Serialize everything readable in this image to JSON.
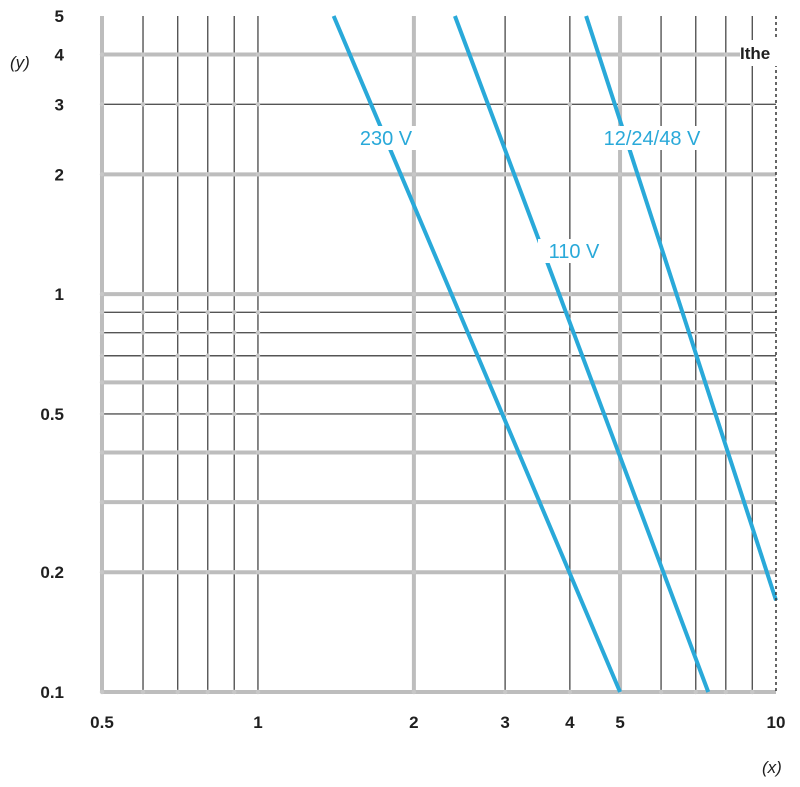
{
  "chart_data": {
    "type": "line",
    "xscale": "log",
    "yscale": "log",
    "xlim": [
      0.5,
      10
    ],
    "ylim": [
      0.1,
      5
    ],
    "xlabel": "(x)",
    "ylabel": "(y)",
    "grid": true,
    "x_ticks": [
      0.5,
      1,
      2,
      3,
      4,
      5,
      10
    ],
    "x_tick_labels": [
      "0.5",
      "1",
      "2",
      "3",
      "4",
      "5",
      "10"
    ],
    "y_ticks": [
      0.1,
      0.2,
      0.5,
      1,
      2,
      3,
      4,
      5
    ],
    "y_tick_labels": [
      "0.1",
      "0.2",
      "0.5",
      "1",
      "2",
      "3",
      "4",
      "5"
    ],
    "x_major_grid": [
      0.5,
      2,
      5
    ],
    "x_minor_grid": [
      0.6,
      0.7,
      0.8,
      0.9,
      1,
      3,
      4,
      6,
      7,
      8,
      9
    ],
    "y_major_grid": [
      0.1,
      0.2,
      0.3,
      0.4,
      0.6,
      1,
      2,
      4
    ],
    "y_minor_grid": [
      0.5,
      0.7,
      0.8,
      0.9,
      3
    ],
    "line_color": "#29a9d9",
    "series": [
      {
        "name": "230 V",
        "points": [
          [
            1.4,
            5
          ],
          [
            5,
            0.1
          ]
        ]
      },
      {
        "name": "110 V",
        "points": [
          [
            2.4,
            5
          ],
          [
            7.4,
            0.1
          ]
        ]
      },
      {
        "name": "12/24/48 V",
        "points": [
          [
            4.3,
            5
          ],
          [
            10,
            0.17
          ]
        ]
      }
    ],
    "annotations": [
      {
        "text": "Ithe",
        "x": 10,
        "style": "dashed vertical line"
      }
    ]
  }
}
